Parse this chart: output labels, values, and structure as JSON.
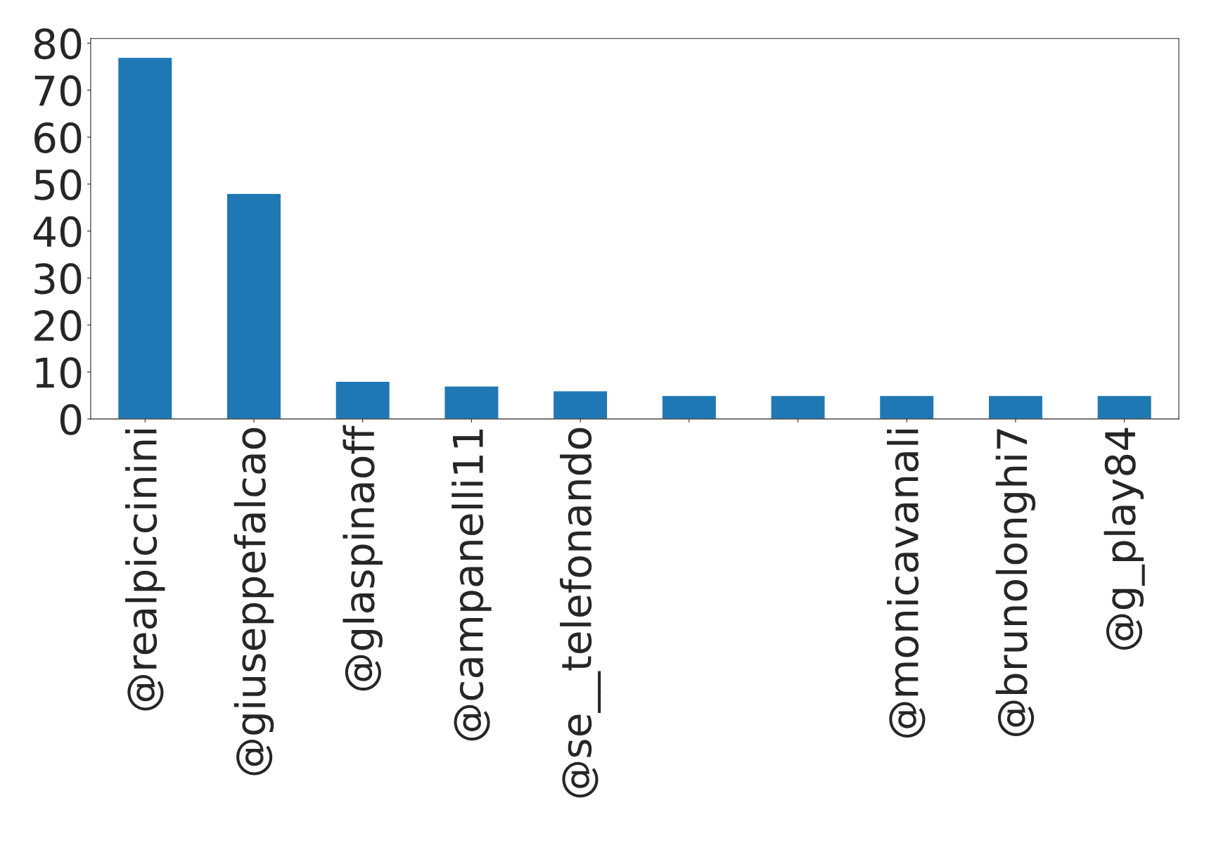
{
  "chart_data": {
    "type": "bar",
    "categories": [
      "@realpiccinini",
      "@giuseppefalcao",
      "@glaspinaoff",
      "@campanelli11",
      "@se__telefonando",
      null,
      null,
      "@monicavanali",
      "@brunolonghi7",
      "@g_play84"
    ],
    "values": [
      77,
      48,
      8,
      7,
      6,
      5,
      5,
      5,
      5,
      5
    ],
    "color": "#1f77b4",
    "ylim": [
      0,
      81
    ],
    "yticks": [
      0,
      10,
      20,
      30,
      40,
      50,
      60,
      70,
      80
    ],
    "grid": false,
    "legend": false
  }
}
